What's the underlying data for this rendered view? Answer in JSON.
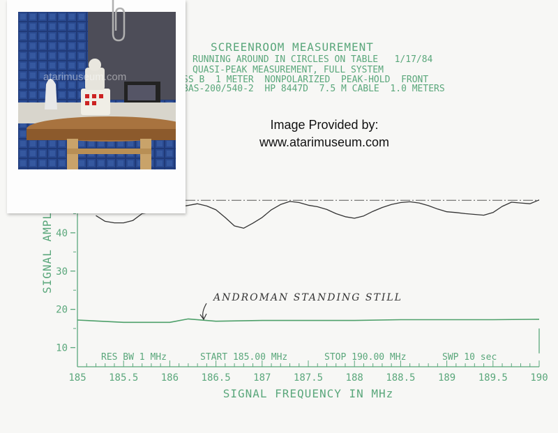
{
  "header": {
    "title": "SCREENROOM MEASUREMENT",
    "line1": "RUNNING AROUND IN CIRCLES ON TABLE   1/17/84",
    "line2": "QUASI-PEAK MEASUREMENT, FULL SYSTEM",
    "line3": "SS B  1 METER  NONPOLARIZED  PEAK-HOLD  FRONT",
    "line4": "BAS-200/540-2  HP 8447D  7.5 M CABLE  1.0 METERS"
  },
  "credit": {
    "line1": "Image Provided by:",
    "line2": "www.atarimuseum.com"
  },
  "photo": {
    "watermark": "atarimuseum.com"
  },
  "colors": {
    "paper": "#f7f7f5",
    "grid_ink": "#5aa77b",
    "pen_trace": "#333333",
    "lower_trace": "#4ea06a"
  },
  "chart_data": {
    "type": "line",
    "xlabel": "SIGNAL FREQUENCY IN MHz",
    "ylabel": "SIGNAL AMPL",
    "xlim": [
      185,
      190
    ],
    "ylim": [
      5,
      52
    ],
    "x_ticks": [
      "185",
      "185.5",
      "186",
      "186.5",
      "187",
      "187.5",
      "188",
      "188.5",
      "189",
      "189.5",
      "190"
    ],
    "y_ticks": [
      "10",
      "20",
      "30",
      "40"
    ],
    "settings_line": {
      "res_bw": "RES BW 1 MHz",
      "start": "START 185.00 MHz",
      "stop": "STOP 190.00 MHz",
      "sweep": "SWP 10  sec"
    },
    "limit_line": {
      "y": 48.5,
      "style": "dash-dot"
    },
    "annotation": "ANDROMAN STANDING STILL",
    "series": [
      {
        "name": "",
        "color": "#333333",
        "x": [
          185.2,
          185.3,
          185.4,
          185.5,
          185.6,
          185.7,
          186.3,
          186.4,
          186.5,
          186.6,
          186.7,
          186.8,
          186.9,
          187.0,
          187.1,
          187.2,
          187.3,
          187.4,
          187.5,
          187.6,
          187.7,
          187.8,
          187.9,
          188.0,
          188.1,
          188.2,
          188.3,
          188.4,
          188.5,
          188.6,
          188.7,
          188.8,
          188.9,
          189.0,
          189.1,
          189.2,
          189.3,
          189.4,
          189.5,
          189.6,
          189.7,
          189.8,
          189.9,
          190.0
        ],
        "y": [
          44.5,
          43.0,
          42.6,
          42.6,
          43.2,
          45.0,
          47.6,
          47.0,
          46.0,
          44.0,
          41.8,
          41.2,
          42.5,
          44.0,
          46.0,
          47.4,
          48.2,
          47.9,
          47.2,
          46.8,
          46.1,
          45.0,
          44.2,
          43.8,
          44.4,
          45.6,
          46.6,
          47.4,
          47.9,
          48.1,
          47.8,
          47.1,
          46.2,
          45.5,
          45.3,
          45.0,
          44.8,
          44.6,
          45.3,
          46.9,
          48.0,
          47.8,
          47.6,
          48.6
        ]
      },
      {
        "name": "ANDROMAN STANDING STILL",
        "color": "#4ea06a",
        "x": [
          185.0,
          185.5,
          186.0,
          186.2,
          186.5,
          187.0,
          187.5,
          188.0,
          188.5,
          189.0,
          189.5,
          190.0
        ],
        "y": [
          17.2,
          16.6,
          16.6,
          17.5,
          16.9,
          17.1,
          17.1,
          17.1,
          17.3,
          17.3,
          17.3,
          17.4
        ]
      }
    ]
  }
}
